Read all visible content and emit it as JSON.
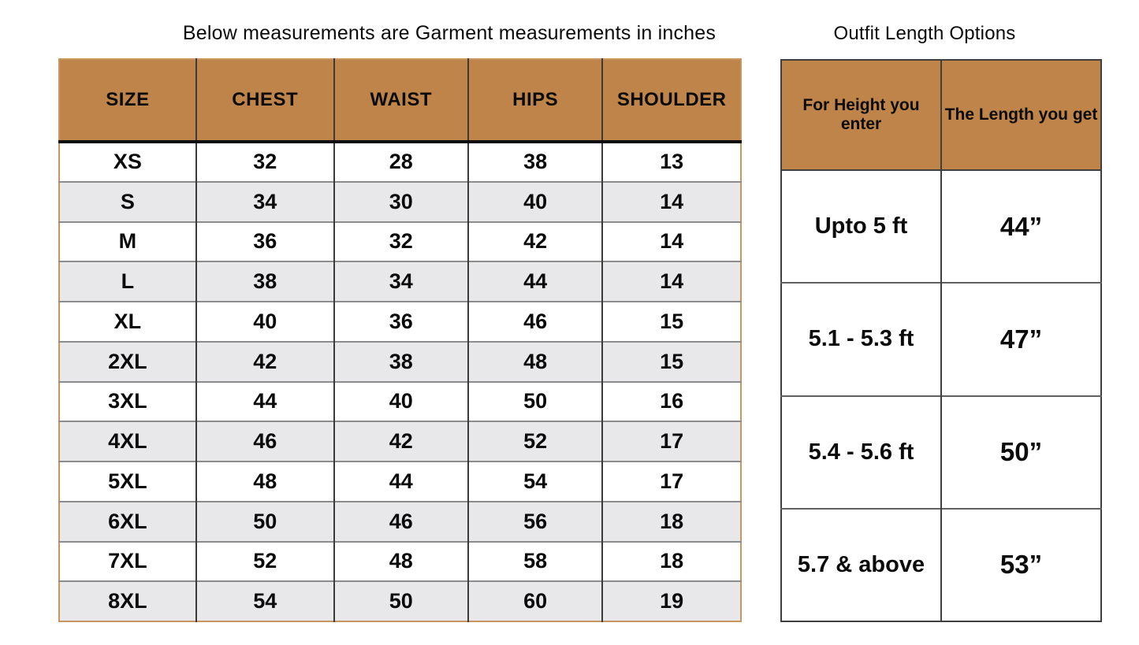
{
  "colors": {
    "page_bg": "#FFFFFF",
    "header_bg": "#BF8449",
    "garment_outer_border": "#C89760",
    "alt_row_bg": "#E8E8EA",
    "row_divider": "#8C8C8C",
    "column_divider": "#3A3A3A",
    "header_underline": "#0D0D0D",
    "length_table_border": "#3F3F3F",
    "length_row_divider": "#606060",
    "text": "#0B0B0B"
  },
  "garment_table": {
    "title": "Below measurements are Garment measurements in inches",
    "columns": [
      "SIZE",
      "CHEST",
      "WAIST",
      "HIPS",
      "SHOULDER"
    ],
    "rows": [
      [
        "XS",
        "32",
        "28",
        "38",
        "13"
      ],
      [
        "S",
        "34",
        "30",
        "40",
        "14"
      ],
      [
        "M",
        "36",
        "32",
        "42",
        "14"
      ],
      [
        "L",
        "38",
        "34",
        "44",
        "14"
      ],
      [
        "XL",
        "40",
        "36",
        "46",
        "15"
      ],
      [
        "2XL",
        "42",
        "38",
        "48",
        "15"
      ],
      [
        "3XL",
        "44",
        "40",
        "50",
        "16"
      ],
      [
        "4XL",
        "46",
        "42",
        "52",
        "17"
      ],
      [
        "5XL",
        "48",
        "44",
        "54",
        "17"
      ],
      [
        "6XL",
        "50",
        "46",
        "56",
        "18"
      ],
      [
        "7XL",
        "52",
        "48",
        "58",
        "18"
      ],
      [
        "8XL",
        "54",
        "50",
        "60",
        "19"
      ]
    ]
  },
  "length_table": {
    "title": "Outfit Length Options",
    "columns": [
      "For Height you enter",
      "The Length you get"
    ],
    "rows": [
      [
        "Upto 5 ft",
        "44”"
      ],
      [
        "5.1 - 5.3 ft",
        "47”"
      ],
      [
        "5.4 - 5.6 ft",
        "50”"
      ],
      [
        "5.7 & above",
        "53”"
      ]
    ]
  },
  "chart_data": [
    {
      "type": "table",
      "title": "Below measurements are Garment measurements in inches",
      "columns": [
        "SIZE",
        "CHEST",
        "WAIST",
        "HIPS",
        "SHOULDER"
      ],
      "rows": [
        [
          "XS",
          32,
          28,
          38,
          13
        ],
        [
          "S",
          34,
          30,
          40,
          14
        ],
        [
          "M",
          36,
          32,
          42,
          14
        ],
        [
          "L",
          38,
          34,
          44,
          14
        ],
        [
          "XL",
          40,
          36,
          46,
          15
        ],
        [
          "2XL",
          42,
          38,
          48,
          15
        ],
        [
          "3XL",
          44,
          40,
          50,
          16
        ],
        [
          "4XL",
          46,
          42,
          52,
          17
        ],
        [
          "5XL",
          48,
          44,
          54,
          17
        ],
        [
          "6XL",
          50,
          46,
          56,
          18
        ],
        [
          "7XL",
          52,
          48,
          58,
          18
        ],
        [
          "8XL",
          54,
          50,
          60,
          19
        ]
      ],
      "units": "inches"
    },
    {
      "type": "table",
      "title": "Outfit Length Options",
      "columns": [
        "For Height you enter",
        "The Length you get"
      ],
      "rows": [
        [
          "Upto 5 ft",
          "44”"
        ],
        [
          "5.1 - 5.3 ft",
          "47”"
        ],
        [
          "5.4 - 5.6 ft",
          "50”"
        ],
        [
          "5.7 & above",
          "53”"
        ]
      ]
    }
  ]
}
